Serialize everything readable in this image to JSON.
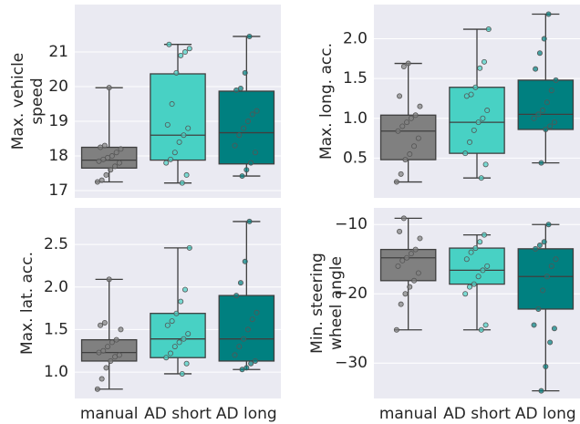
{
  "chart_data": [
    {
      "type": "box",
      "ylabel": [
        "Max. vehicle",
        "speed"
      ],
      "colors": [
        "#808080",
        "#48d1c4",
        "#008080"
      ],
      "ylim": [
        16.79,
        22.37
      ],
      "yticks": [
        17,
        18,
        19,
        20,
        21
      ],
      "grid": true,
      "boxes": [
        {
          "min": 17.25,
          "q1": 17.65,
          "median": 17.88,
          "q3": 18.25,
          "max": 19.97,
          "points": [
            17.25,
            17.3,
            17.45,
            17.6,
            17.7,
            17.8,
            17.85,
            17.9,
            17.95,
            18.0,
            18.1,
            18.2,
            18.25,
            18.3,
            19.97
          ]
        },
        {
          "min": 17.22,
          "q1": 17.88,
          "median": 18.6,
          "q3": 20.37,
          "max": 21.22,
          "points": [
            17.22,
            17.45,
            17.8,
            17.9,
            18.1,
            18.4,
            18.6,
            18.8,
            18.9,
            19.5,
            20.4,
            20.9,
            21.0,
            21.1,
            21.22
          ]
        },
        {
          "min": 17.42,
          "q1": 17.77,
          "median": 18.67,
          "q3": 19.87,
          "max": 21.45,
          "points": [
            17.42,
            17.6,
            17.8,
            18.1,
            18.3,
            18.6,
            18.8,
            19.0,
            19.2,
            19.3,
            19.9,
            19.95,
            20.4,
            21.45
          ]
        }
      ]
    },
    {
      "type": "box",
      "ylabel": [
        "Max. long. acc."
      ],
      "colors": [
        "#808080",
        "#48d1c4",
        "#008080"
      ],
      "ylim": [
        0.0,
        2.43
      ],
      "yticks": [
        0.5,
        {
          "value": 1,
          "label": "1.0"
        },
        1.5,
        {
          "value": 2,
          "label": "2.0"
        }
      ],
      "grid": true,
      "boxes": [
        {
          "min": 0.2,
          "q1": 0.48,
          "median": 0.84,
          "q3": 1.04,
          "max": 1.69,
          "points": [
            0.2,
            0.3,
            0.48,
            0.55,
            0.65,
            0.75,
            0.84,
            0.9,
            0.95,
            1.0,
            1.04,
            1.15,
            1.28,
            1.65,
            1.69
          ]
        },
        {
          "min": 0.25,
          "q1": 0.56,
          "median": 0.95,
          "q3": 1.39,
          "max": 2.12,
          "points": [
            0.25,
            0.42,
            0.56,
            0.7,
            0.85,
            0.95,
            1.0,
            1.1,
            1.28,
            1.3,
            1.39,
            1.63,
            1.71,
            2.12
          ]
        },
        {
          "min": 0.44,
          "q1": 0.86,
          "median": 1.05,
          "q3": 1.48,
          "max": 2.31,
          "points": [
            0.44,
            0.86,
            0.9,
            0.95,
            1.0,
            1.05,
            1.1,
            1.2,
            1.35,
            1.48,
            1.62,
            1.82,
            2.0,
            2.31
          ]
        }
      ]
    },
    {
      "type": "box",
      "ylabel": [
        "Max. lat. acc."
      ],
      "colors": [
        "#808080",
        "#48d1c4",
        "#008080"
      ],
      "categories": [
        "manual",
        "AD short",
        "AD long"
      ],
      "ylim": [
        0.69,
        2.93
      ],
      "yticks": [
        {
          "value": 1,
          "label": "1.0"
        },
        1.5,
        {
          "value": 2,
          "label": "2.0"
        },
        2.5
      ],
      "grid": true,
      "boxes": [
        {
          "min": 0.8,
          "q1": 1.13,
          "median": 1.23,
          "q3": 1.38,
          "max": 2.09,
          "points": [
            0.8,
            0.92,
            1.05,
            1.13,
            1.18,
            1.2,
            1.23,
            1.25,
            1.3,
            1.35,
            1.38,
            1.5,
            1.55,
            1.58,
            2.09
          ]
        },
        {
          "min": 0.98,
          "q1": 1.17,
          "median": 1.39,
          "q3": 1.69,
          "max": 2.46,
          "points": [
            0.98,
            1.1,
            1.17,
            1.22,
            1.3,
            1.35,
            1.39,
            1.45,
            1.55,
            1.6,
            1.69,
            1.83,
            1.97,
            2.46
          ]
        },
        {
          "min": 1.03,
          "q1": 1.13,
          "median": 1.39,
          "q3": 1.9,
          "max": 2.77,
          "points": [
            1.03,
            1.05,
            1.1,
            1.13,
            1.2,
            1.3,
            1.39,
            1.5,
            1.62,
            1.7,
            1.9,
            2.05,
            2.3,
            2.77
          ]
        }
      ]
    },
    {
      "type": "box",
      "ylabel": [
        "Min. steering",
        "wheel angle"
      ],
      "colors": [
        "#808080",
        "#48d1c4",
        "#008080"
      ],
      "categories": [
        "manual",
        "AD short",
        "AD long"
      ],
      "ylim": [
        -35.1,
        -7.6
      ],
      "yticks": [
        {
          "value": -30,
          "label": "−30"
        },
        {
          "value": -20,
          "label": "−20"
        },
        {
          "value": -10,
          "label": "−10"
        }
      ],
      "grid": true,
      "boxes": [
        {
          "min": -25.2,
          "q1": -18.1,
          "median": -14.8,
          "q3": -13.6,
          "max": -9.1,
          "points": [
            -25.2,
            -21.5,
            -20,
            -19,
            -18.1,
            -17,
            -16,
            -15.2,
            -14.8,
            -14.2,
            -13.6,
            -12,
            -11,
            -9.1
          ]
        },
        {
          "min": -25.2,
          "q1": -18.6,
          "median": -16.6,
          "q3": -13.4,
          "max": -11.5,
          "points": [
            -25.2,
            -24.5,
            -20,
            -19,
            -18.6,
            -17.5,
            -16.6,
            -16,
            -15,
            -14,
            -13.4,
            -12.5,
            -11.5
          ]
        },
        {
          "min": -34,
          "q1": -22.2,
          "median": -17.5,
          "q3": -13.5,
          "max": -10,
          "points": [
            -34,
            -30.5,
            -27,
            -25,
            -24.5,
            -22.2,
            -19.5,
            -17.5,
            -16,
            -15,
            -13.5,
            -13,
            -12.5,
            -10
          ]
        }
      ]
    }
  ]
}
